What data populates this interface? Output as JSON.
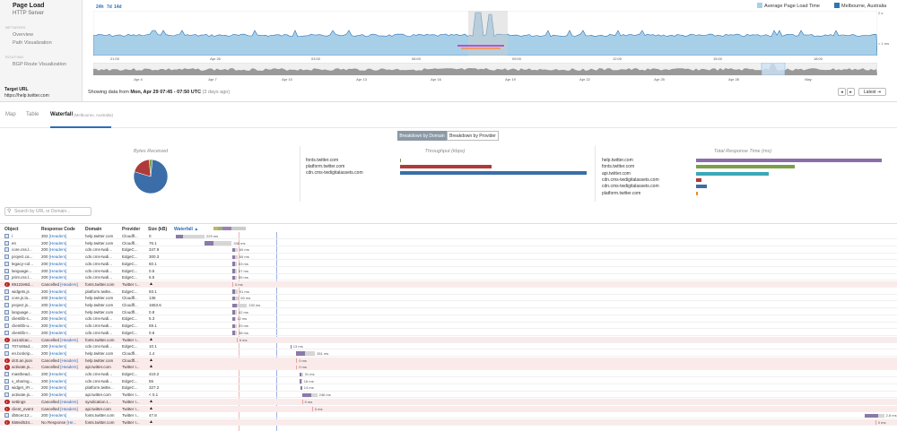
{
  "nav": {
    "title": "Page Load",
    "subtitle": "HTTP Server",
    "section_network": "NETWORK",
    "overview": "Overview",
    "path_viz": "Path Visualization",
    "section_routing": "ROUTING",
    "bgp": "BGP Route Visualization",
    "target_label": "Target URL",
    "target_value": "https://help.twitter.com"
  },
  "timeline": {
    "range_24h": "24h",
    "range_7d": "7d",
    "range_14d": "14d",
    "legend": [
      {
        "label": "Average Page Load Time",
        "color": "#a8cfe8"
      },
      {
        "label": "Melbourne, Australia",
        "color": "#2e75b6"
      }
    ],
    "y_top": "2 s",
    "y_bottom": "< 1 ms",
    "hours": [
      "21:00",
      "Apr 26",
      "03:00",
      "06:00",
      "09:00",
      "12:00",
      "15:00",
      "18:00"
    ],
    "dates": [
      "Apr 4",
      "Apr 7",
      "Apr 10",
      "Apr 13",
      "Apr 16",
      "Apr 19",
      "Apr 22",
      "Apr 25",
      "Apr 28",
      "May"
    ],
    "showing_prefix": "Showing data from",
    "showing_range": "Mon, Apr 29 07:45 - 07:50 UTC",
    "showing_ago": "(3 days ago)",
    "prev_icon": "◂",
    "next_icon": "▸",
    "latest": "Latest ⇥"
  },
  "tabs": {
    "map": "Map",
    "table": "Table",
    "waterfall": "Waterfall",
    "waterfall_sub": "(Melbourne, Australia)"
  },
  "breakdown": {
    "by_domain": "Breakdown by Domain",
    "by_provider": "Breakdown by Provider",
    "bytes_title": "Bytes Received",
    "throughput_title": "Throughput (kbps)",
    "response_title": "Total Response Time (ms)",
    "pie": [
      {
        "label": "cdn.cms-twdigitalassets.com",
        "fraction": 0.78,
        "color": "#3b6ea8"
      },
      {
        "label": "help.twitter.com",
        "fraction": 0.19,
        "color": "#b03a3a"
      },
      {
        "label": "platform.twitter.com",
        "fraction": 0.03,
        "color": "#7aa04a"
      }
    ],
    "throughput": [
      {
        "domain": "fonts.twitter.com",
        "value": 0,
        "color": "#7aa04a"
      },
      {
        "domain": "platform.twitter.com",
        "value": 0.49,
        "color": "#b03a3a"
      },
      {
        "domain": "cdn.cms-twdigitalassets.com",
        "value": 1.0,
        "color": "#3b6ea8"
      }
    ],
    "response": [
      {
        "domain": "help.twitter.com",
        "value": 1.0,
        "color": "#8a6ea8"
      },
      {
        "domain": "fonts.twitter.com",
        "value": 0.53,
        "color": "#7aa04a"
      },
      {
        "domain": "api.twitter.com",
        "value": 0.39,
        "color": "#3aa8b8"
      },
      {
        "domain": "cdn.cms-twdigitalassets.com",
        "value": 0.03,
        "color": "#b03a3a"
      },
      {
        "domain": "cdn.cms-twdigitalassets.com",
        "value": 0.06,
        "color": "#3b6ea8"
      },
      {
        "domain": "platform.twitter.com",
        "value": 0.01,
        "color": "#e09030"
      }
    ]
  },
  "search": {
    "placeholder": "Search by URL or Domain..."
  },
  "table": {
    "headers": {
      "object": "Object",
      "code": "Response Code",
      "domain": "Domain",
      "provider": "Provider",
      "size": "Size (kB)",
      "waterfall": "Waterfall ▲"
    },
    "rows": [
      {
        "obj": "/",
        "code": "302",
        "hdr": "[Headers]",
        "dom": "help.twitter.com",
        "prov": "Cloudfl...",
        "size": "0",
        "err": false,
        "warn": false,
        "start": 0,
        "w": 1,
        "wait": 3,
        "t": "229 ms"
      },
      {
        "obj": "en",
        "code": "200",
        "hdr": "[Headers]",
        "dom": "help.twitter.com",
        "prov": "Cloudfl...",
        "size": "76.1",
        "err": false,
        "warn": false,
        "start": 4,
        "w": 1.2,
        "wait": 2.6,
        "t": "336 ms"
      },
      {
        "obj": "core.css.l...",
        "code": "200",
        "hdr": "[Headers]",
        "dom": "cdn.cms-twdi...",
        "prov": "EdgeC...",
        "size": "347.9",
        "err": false,
        "warn": false,
        "start": 7.9,
        "w": 0.4,
        "wait": 0.3,
        "t": "60 ms"
      },
      {
        "obj": "project.ca...",
        "code": "200",
        "hdr": "[Headers]",
        "dom": "cdn.cms-twdi...",
        "prov": "EdgeC...",
        "size": "300.3",
        "err": false,
        "warn": false,
        "start": 7.9,
        "w": 0.4,
        "wait": 0.3,
        "t": "65 ms"
      },
      {
        "obj": "legacy-col...",
        "code": "200",
        "hdr": "[Headers]",
        "dom": "cdn.cms-twdi...",
        "prov": "EdgeC...",
        "size": "50.1",
        "err": false,
        "warn": false,
        "start": 7.9,
        "w": 0.4,
        "wait": 0.2,
        "t": "53 ms"
      },
      {
        "obj": "language...",
        "code": "200",
        "hdr": "[Headers]",
        "dom": "cdn.cms-twdi...",
        "prov": "EdgeC...",
        "size": "0.5",
        "err": false,
        "warn": false,
        "start": 7.9,
        "w": 0.4,
        "wait": 0.2,
        "t": "57 ms"
      },
      {
        "obj": "print.css.l...",
        "code": "200",
        "hdr": "[Headers]",
        "dom": "cdn.cms-twdi...",
        "prov": "EdgeC...",
        "size": "6.5",
        "err": false,
        "warn": false,
        "start": 7.9,
        "w": 0.4,
        "wait": 0.2,
        "t": "55 ms"
      },
      {
        "obj": "89122e8d...",
        "code": "Cancelled",
        "hdr": "[Headers]",
        "dom": "fonts.twitter.com",
        "prov": "Twitter I...",
        "size": "",
        "err": true,
        "warn": true,
        "start": 7.9,
        "w": 0.1,
        "wait": 0,
        "t": "0 ms"
      },
      {
        "obj": "widgets.js",
        "code": "200",
        "hdr": "[Headers]",
        "dom": "platform.twitte...",
        "prov": "EdgeC...",
        "size": "93.1",
        "err": false,
        "warn": false,
        "start": 7.9,
        "w": 0.4,
        "wait": 0.3,
        "t": "91 ms"
      },
      {
        "obj": "core.js.la...",
        "code": "200",
        "hdr": "[Headers]",
        "dom": "help.twitter.com",
        "prov": "Cloudfl...",
        "size": "136",
        "err": false,
        "warn": false,
        "start": 7.9,
        "w": 0.4,
        "wait": 0.5,
        "t": "60 ms"
      },
      {
        "obj": "project.js...",
        "code": "200",
        "hdr": "[Headers]",
        "dom": "help.twitter.com",
        "prov": "Cloudfl...",
        "size": "1653.6",
        "err": false,
        "warn": false,
        "start": 7.9,
        "w": 0.6,
        "wait": 1.4,
        "t": "130 ms"
      },
      {
        "obj": "language...",
        "code": "200",
        "hdr": "[Headers]",
        "dom": "help.twitter.com",
        "prov": "Cloudfl...",
        "size": "0.8",
        "err": false,
        "warn": false,
        "start": 7.9,
        "w": 0.4,
        "wait": 0.2,
        "t": "42 ms"
      },
      {
        "obj": "clientlib-s...",
        "code": "200",
        "hdr": "[Headers]",
        "dom": "cdn.cms-twdi...",
        "prov": "EdgeC...",
        "size": "5.3",
        "err": false,
        "warn": false,
        "start": 7.9,
        "w": 0.3,
        "wait": 0.1,
        "t": "12 ms"
      },
      {
        "obj": "clientlib-u...",
        "code": "200",
        "hdr": "[Headers]",
        "dom": "cdn.cms-twdi...",
        "prov": "EdgeC...",
        "size": "59.1",
        "err": false,
        "warn": false,
        "start": 7.9,
        "w": 0.4,
        "wait": 0.2,
        "t": "33 ms"
      },
      {
        "obj": "clientlib-r...",
        "code": "200",
        "hdr": "[Headers]",
        "dom": "cdn.cms-twdi...",
        "prov": "EdgeC...",
        "size": "0.6",
        "err": false,
        "warn": false,
        "start": 7.9,
        "w": 0.4,
        "wait": 0.2,
        "t": "38 ms"
      },
      {
        "obj": "1a14dcac...",
        "code": "Cancelled",
        "hdr": "[Headers]",
        "dom": "fonts.twitter.com",
        "prov": "Twitter I...",
        "size": "",
        "err": true,
        "warn": true,
        "start": 8.5,
        "w": 0.1,
        "wait": 0,
        "t": "6 ms"
      },
      {
        "obj": "707448ad...",
        "code": "200",
        "hdr": "[Headers]",
        "dom": "cdn.cms-twdi...",
        "prov": "EdgeC...",
        "size": "10.1",
        "err": false,
        "warn": false,
        "start": 16,
        "w": 0.1,
        "wait": 0,
        "t": "13 ms"
      },
      {
        "obj": "en.bcskrip...",
        "code": "200",
        "hdr": "[Headers]",
        "dom": "help.twitter.com",
        "prov": "Cloudfl...",
        "size": "1.4",
        "err": false,
        "warn": false,
        "start": 16.8,
        "w": 1.2,
        "wait": 1.4,
        "t": "261 ms"
      },
      {
        "obj": "dc0.an.json",
        "code": "Cancelled",
        "hdr": "[Headers]",
        "dom": "help.twitter.com",
        "prov": "Cloudfl...",
        "size": "",
        "err": true,
        "warn": true,
        "start": 16.8,
        "w": 0.1,
        "wait": 0,
        "t": "0 ms"
      },
      {
        "obj": "activate.js...",
        "code": "Cancelled",
        "hdr": "[Headers]",
        "dom": "api.twitter.com",
        "prov": "Twitter I...",
        "size": "",
        "err": true,
        "warn": true,
        "start": 16.8,
        "w": 0.1,
        "wait": 0,
        "t": "0 ms"
      },
      {
        "obj": "masthead...",
        "code": "200",
        "hdr": "[Headers]",
        "dom": "cdn.cms-twdi...",
        "prov": "EdgeC...",
        "size": "419.2",
        "err": false,
        "warn": false,
        "start": 17.2,
        "w": 0.3,
        "wait": 0.2,
        "t": "31 ms"
      },
      {
        "obj": "x_sharing...",
        "code": "200",
        "hdr": "[Headers]",
        "dom": "cdn.cms-twdi...",
        "prov": "EdgeC...",
        "size": "55",
        "err": false,
        "warn": false,
        "start": 17.2,
        "w": 0.3,
        "wait": 0.1,
        "t": "16 ms"
      },
      {
        "obj": "widget_iFr...",
        "code": "200",
        "hdr": "[Headers]",
        "dom": "platform.twitte...",
        "prov": "EdgeC...",
        "size": "327.2",
        "err": false,
        "warn": false,
        "start": 17.4,
        "w": 0.2,
        "wait": 0,
        "t": "14 ms"
      },
      {
        "obj": "activate.js...",
        "code": "200",
        "hdr": "[Headers]",
        "dom": "api.twitter.com",
        "prov": "Twitter I...",
        "size": "< 0.1",
        "err": false,
        "warn": false,
        "start": 17.6,
        "w": 1.3,
        "wait": 0.8,
        "t": "246 ms"
      },
      {
        "obj": "settings",
        "code": "Cancelled",
        "hdr": "[Headers]",
        "dom": "syndication.t...",
        "prov": "Twitter I...",
        "size": "",
        "err": true,
        "warn": true,
        "start": 17.6,
        "w": 0.1,
        "wait": 0,
        "t": "0 ms"
      },
      {
        "obj": "client_event",
        "code": "Cancelled",
        "hdr": "[Headers]",
        "dom": "api.twitter.com",
        "prov": "Twitter I...",
        "size": "",
        "err": true,
        "warn": true,
        "start": 19,
        "w": 0.1,
        "wait": 0,
        "t": "0 ms"
      },
      {
        "obj": "db5cec12...",
        "code": "200",
        "hdr": "[Headers]",
        "dom": "fonts.twitter.com",
        "prov": "Twitter I...",
        "size": "47.8",
        "err": false,
        "warn": false,
        "start": 96,
        "w": 1.9,
        "wait": 0.8,
        "t": "2.8 ms"
      },
      {
        "obj": "558ed534...",
        "code": "No Response",
        "hdr": "[He...",
        "dom": "fonts.twitter.com",
        "prov": "Twitter I...",
        "size": "",
        "err": true,
        "warn": true,
        "start": 97.5,
        "w": 0.1,
        "wait": 0,
        "t": "0 ms"
      }
    ]
  }
}
